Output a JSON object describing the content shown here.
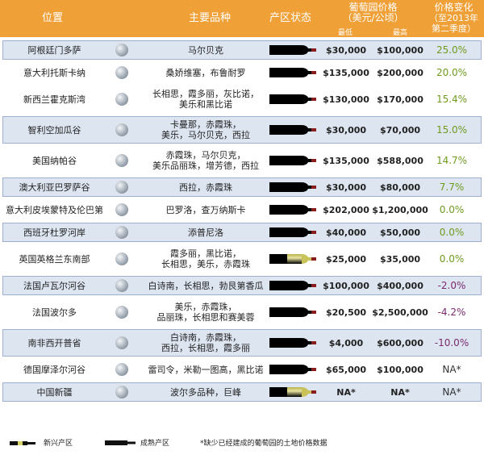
{
  "header": {
    "location": "位置",
    "varieties": "主要品种",
    "status": "产区状态",
    "price": "葡萄园价格",
    "price_unit": "（美元/公顷）",
    "min": "最低",
    "max": "最高",
    "change": "价格变化",
    "change_note_1": "（至2013年",
    "change_note_2": "第二季度）"
  },
  "rows": [
    {
      "location": "阿根廷门多萨",
      "varieties": [
        "马尔贝克"
      ],
      "status": "mature",
      "min": "$30,000",
      "max": "$100,000",
      "change": "25.0%",
      "change_color": "#6f9a1f"
    },
    {
      "location": "意大利托斯卡纳",
      "varieties": [
        "桑娇维塞，布鲁耐罗"
      ],
      "status": "mature",
      "min": "$135,000",
      "max": "$200,000",
      "change": "20.0%",
      "change_color": "#6f9a1f"
    },
    {
      "location": "新西兰霍克斯湾",
      "varieties": [
        "长相思，霞多丽，灰比诺，",
        "美乐和黑比诺"
      ],
      "status": "mature",
      "min": "$130,000",
      "max": "$170,000",
      "change": "15.4%",
      "change_color": "#6f9a1f"
    },
    {
      "location": "智利空加瓜谷",
      "varieties": [
        "卡曼那，赤霞珠，",
        "美乐，马尔贝克，西拉"
      ],
      "status": "mature",
      "min": "$30,000",
      "max": "$70,000",
      "change": "15.0%",
      "change_color": "#6f9a1f"
    },
    {
      "location": "美国纳帕谷",
      "varieties": [
        "赤霞珠，马尔贝克，",
        "美乐品丽珠，增芳德，西拉"
      ],
      "status": "mature",
      "min": "$135,000",
      "max": "$588,000",
      "change": "14.7%",
      "change_color": "#6f9a1f"
    },
    {
      "location": "澳大利亚巴罗萨谷",
      "varieties": [
        "西拉，赤霞珠"
      ],
      "status": "mature",
      "min": "$30,000",
      "max": "$80,000",
      "change": "7.7%",
      "change_color": "#6f9a1f"
    },
    {
      "location": "意大利皮埃蒙特及伦巴第",
      "varieties": [
        "巴罗洛，查万纳斯卡"
      ],
      "status": "mature",
      "min": "$202,000",
      "max": "$1,200,000",
      "change": "0.0%",
      "change_color": "#6f9a1f"
    },
    {
      "location": "西班牙杜罗河岸",
      "varieties": [
        "添普尼洛"
      ],
      "status": "mature",
      "min": "$40,000",
      "max": "$50,000",
      "change": "0.0%",
      "change_color": "#6f9a1f"
    },
    {
      "location": "英国英格兰东南部",
      "varieties": [
        "霞多丽，黑比诺，",
        "长相思，美乐，赤霞珠"
      ],
      "status": "emerging",
      "min": "$25,000",
      "max": "$35,000",
      "change": "0.0%",
      "change_color": "#6f9a1f"
    },
    {
      "location": "法国卢瓦尔河谷",
      "varieties": [
        "白诗南，长相思，勃艮第香瓜"
      ],
      "status": "mature",
      "min": "$100,000",
      "max": "$400,000",
      "change": "-2.0%",
      "change_color": "#7a2a6e"
    },
    {
      "location": "法国波尔多",
      "varieties": [
        "美乐，赤霞珠，",
        "品丽珠，长相思和赛美蓉"
      ],
      "status": "mature",
      "min": "$20,500",
      "max": "$2,500,000",
      "change": "-4.2%",
      "change_color": "#7a2a6e"
    },
    {
      "location": "南非西开普省",
      "varieties": [
        "白诗南，赤霞珠，",
        "西拉，长相思，霞多丽"
      ],
      "status": "mature",
      "min": "$4,000",
      "max": "$600,000",
      "change": "-10.0%",
      "change_color": "#7a2a6e"
    },
    {
      "location": "德国摩泽尔河谷",
      "varieties": [
        "雷司令，米勒一图高，黑比诺"
      ],
      "status": "mature",
      "min": "$65,000",
      "max": "$100,000",
      "change": "NA*",
      "change_color": "#333333"
    },
    {
      "location": "中国新疆",
      "varieties": [
        "波尔多品种，巨峰"
      ],
      "status": "emerging",
      "min": "NA*",
      "max": "NA*",
      "change": "NA*",
      "change_color": "#333333"
    }
  ],
  "legend": {
    "emerging": "新兴产区",
    "mature": "成熟产区"
  },
  "footnote": "*缺少已经建成的葡萄园的土地价格数据"
}
